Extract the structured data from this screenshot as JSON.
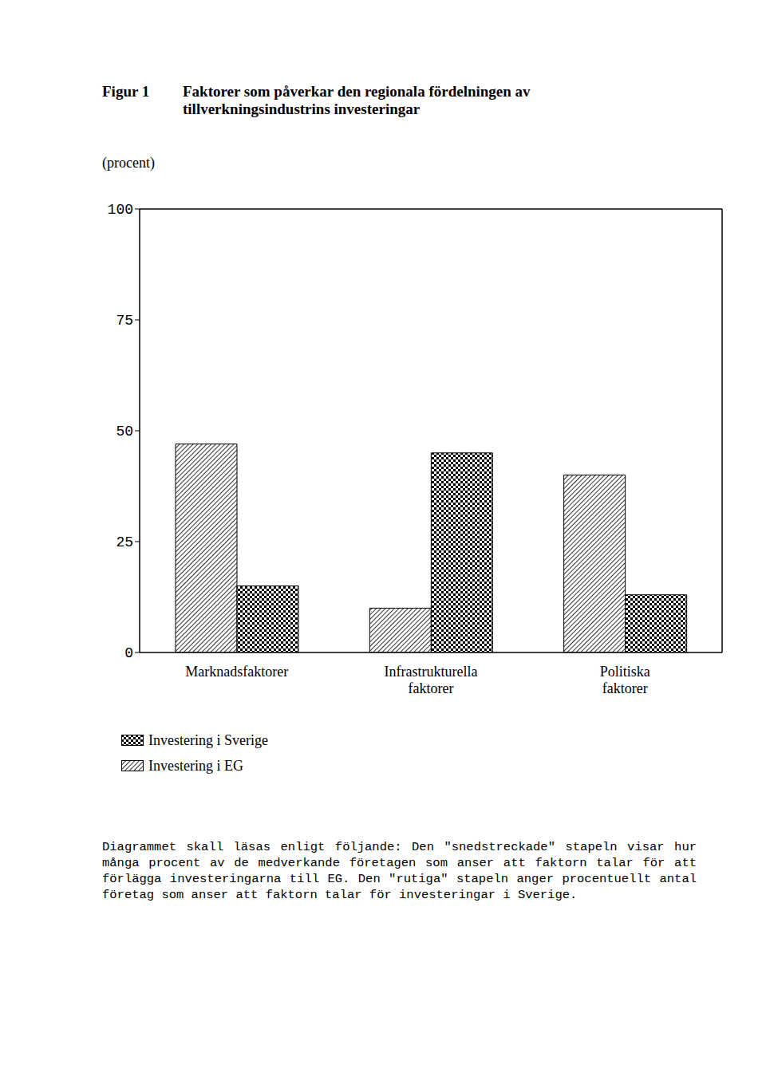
{
  "chart_data": {
    "type": "bar",
    "figure_label": "Figur 1",
    "title": "Faktorer som påverkar den regionala fördelningen av tillverkningsindustrins investeringar",
    "ylabel": "(procent)",
    "categories": [
      "Marknadsfaktorer",
      "Infrastrukturella faktorer",
      "Politiska faktorer"
    ],
    "series": [
      {
        "name": "Investering i Sverige",
        "color": "#000000",
        "values": [
          15,
          45,
          13
        ]
      },
      {
        "name": "Investering i EG",
        "color": "#000000",
        "values": [
          47,
          10,
          40
        ]
      }
    ],
    "ylim": [
      0,
      100
    ],
    "yticks": [
      0,
      25,
      50,
      75,
      100
    ],
    "grid": false,
    "annotation": "Diagrammet skall läsas enligt följande: Den \"snedstreckade\" stapeln visar hur många procent av de medverkande företagen som anser att faktorn talar för att förlägga investeringarna till EG. Den \"rutiga\" stapeln anger procentuellt antal företag som anser att faktorn talar för investeringar i Sverige."
  }
}
